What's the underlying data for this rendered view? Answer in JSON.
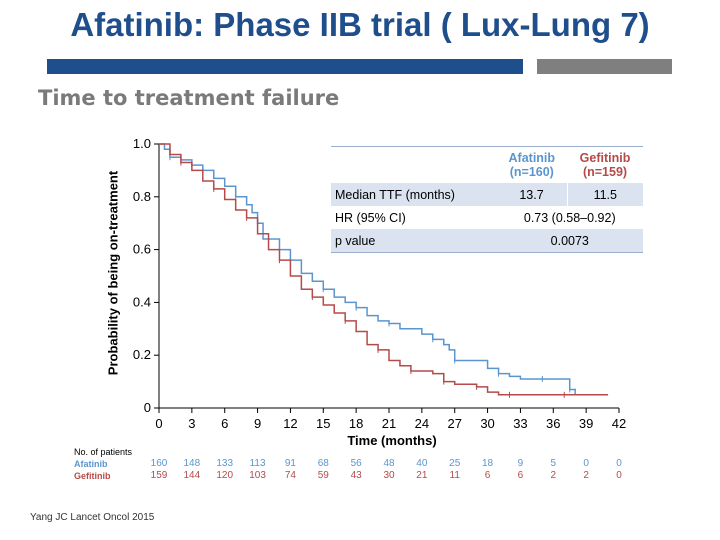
{
  "slide": {
    "title": "Afatinib: Phase IIB trial ( Lux-Lung 7)",
    "subtitle": "Time to treatment failure",
    "citation": "Yang  JC Lancet Oncol 2015"
  },
  "colors": {
    "title": "#1f4e8c",
    "afatinib": "#5b95cf",
    "gefitinib": "#b54a48"
  },
  "table": {
    "headers": [
      "",
      "Afatinib\n(n=160)",
      "Gefitinib\n(n=159)"
    ],
    "afatinib_header": "Afatinib",
    "afatinib_n": "(n=160)",
    "gefitinib_header": "Gefitinib",
    "gefitinib_n": "(n=159)",
    "rows": [
      {
        "label": "Median TTF (months)",
        "afatinib": "13.7",
        "gefitinib": "11.5"
      },
      {
        "label": "HR (95% CI)",
        "value": "0.73 (0.58–0.92)"
      },
      {
        "label": "p value",
        "value": "0.0073"
      }
    ]
  },
  "risk_table": {
    "title": "No. of patients",
    "afatinib_label": "Afatinib",
    "gefitinib_label": "Gefitinib",
    "afatinib": [
      "160",
      "148",
      "133",
      "113",
      "91",
      "68",
      "56",
      "48",
      "40",
      "25",
      "18",
      "9",
      "5",
      "0",
      "0"
    ],
    "gefitinib": [
      "159",
      "144",
      "120",
      "103",
      "74",
      "59",
      "43",
      "30",
      "21",
      "11",
      "6",
      "6",
      "2",
      "2",
      "0"
    ]
  },
  "chart_data": {
    "type": "line",
    "title": "",
    "xlabel": "Time (months)",
    "ylabel": "Probability of being on-treatment",
    "xlim": [
      0,
      42
    ],
    "ylim": [
      0,
      1.0
    ],
    "xticks": [
      0,
      3,
      6,
      9,
      12,
      15,
      18,
      21,
      24,
      27,
      30,
      33,
      36,
      39,
      42
    ],
    "yticks": [
      0,
      0.2,
      0.4,
      0.6,
      0.8,
      1.0
    ],
    "ytick_labels": [
      "0",
      "0.2",
      "0.4",
      "0.6",
      "0.8",
      "1.0"
    ],
    "grid": false,
    "series": [
      {
        "name": "Afatinib",
        "color": "#5b95cf",
        "x": [
          0,
          0.5,
          1,
          2,
          3,
          4,
          5,
          6,
          7,
          8,
          8.5,
          9,
          9.5,
          11,
          12,
          13,
          14,
          15,
          16,
          17,
          18,
          19,
          20,
          21,
          22,
          24,
          25,
          26,
          26.5,
          27,
          28,
          30,
          31,
          32,
          33,
          35,
          36,
          37,
          37.5,
          38,
          41
        ],
        "y": [
          1.0,
          0.98,
          0.95,
          0.94,
          0.92,
          0.9,
          0.87,
          0.84,
          0.8,
          0.77,
          0.74,
          0.7,
          0.64,
          0.6,
          0.56,
          0.51,
          0.48,
          0.45,
          0.42,
          0.4,
          0.38,
          0.35,
          0.33,
          0.32,
          0.3,
          0.28,
          0.26,
          0.24,
          0.22,
          0.18,
          0.18,
          0.15,
          0.13,
          0.12,
          0.11,
          0.11,
          0.11,
          0.11,
          0.07,
          0.05,
          0.05
        ]
      },
      {
        "name": "Gefitinib",
        "color": "#b54a48",
        "x": [
          0,
          1,
          2,
          3,
          4,
          5,
          6,
          7,
          8,
          9,
          10,
          11,
          12,
          13,
          14,
          15,
          16,
          17,
          18,
          19,
          20,
          21,
          22,
          23,
          24,
          25,
          26,
          27,
          28,
          29,
          30,
          31,
          32,
          33,
          35,
          37,
          39,
          41
        ],
        "y": [
          1.0,
          0.96,
          0.93,
          0.9,
          0.86,
          0.83,
          0.79,
          0.75,
          0.72,
          0.66,
          0.6,
          0.56,
          0.5,
          0.45,
          0.42,
          0.39,
          0.36,
          0.33,
          0.29,
          0.24,
          0.22,
          0.18,
          0.16,
          0.14,
          0.14,
          0.13,
          0.1,
          0.09,
          0.09,
          0.08,
          0.06,
          0.05,
          0.05,
          0.05,
          0.05,
          0.05,
          0.05,
          0.05
        ]
      }
    ]
  }
}
